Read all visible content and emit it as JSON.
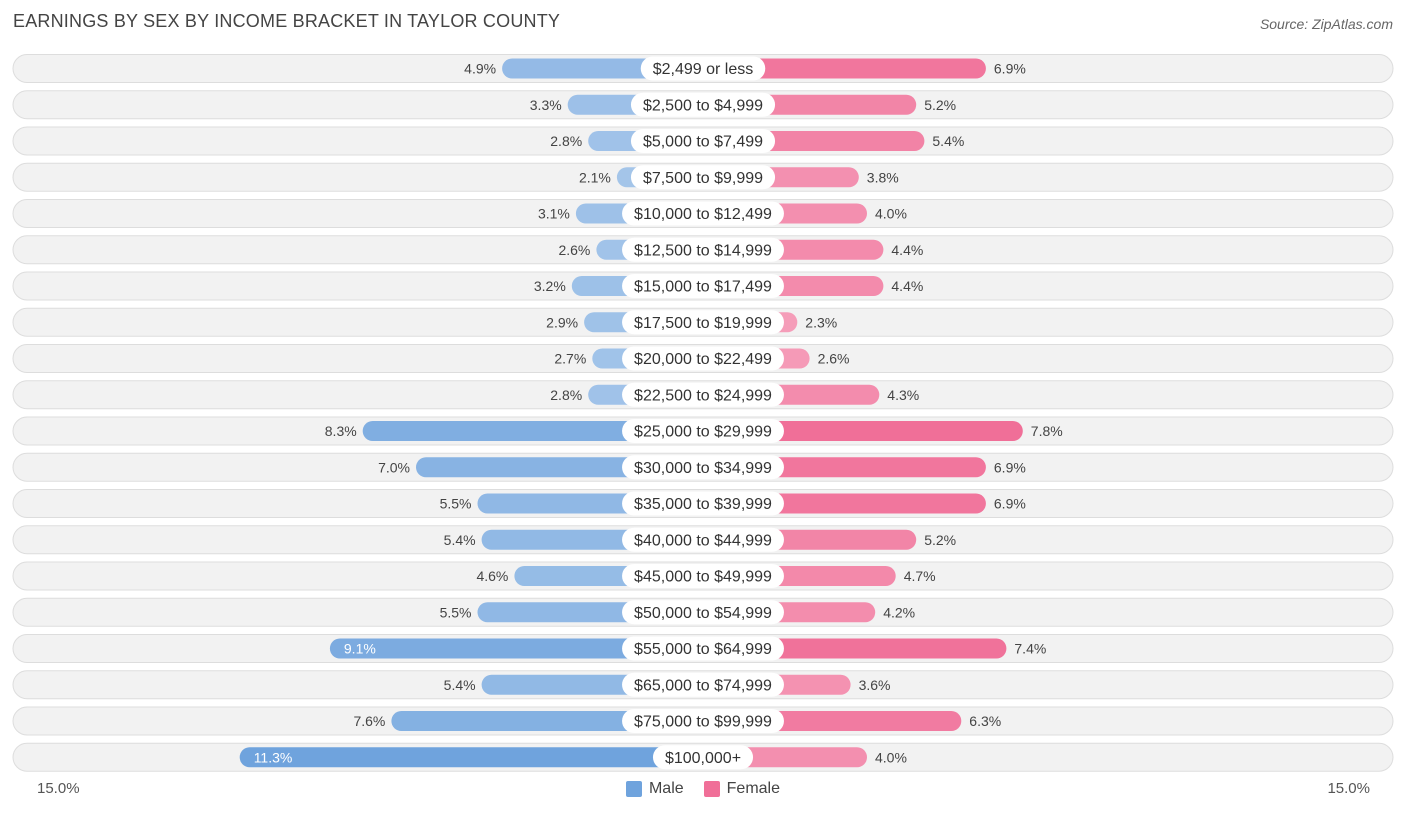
{
  "chart_data": {
    "type": "bar",
    "orientation": "horizontal-diverging",
    "title": "EARNINGS BY SEX BY INCOME BRACKET IN TAYLOR COUNTY",
    "source": "Source: ZipAtlas.com",
    "categories": [
      "$2,499 or less",
      "$2,500 to $4,999",
      "$5,000 to $7,499",
      "$7,500 to $9,999",
      "$10,000 to $12,499",
      "$12,500 to $14,999",
      "$15,000 to $17,499",
      "$17,500 to $19,999",
      "$20,000 to $22,499",
      "$22,500 to $24,999",
      "$25,000 to $29,999",
      "$30,000 to $34,999",
      "$35,000 to $39,999",
      "$40,000 to $44,999",
      "$45,000 to $49,999",
      "$50,000 to $54,999",
      "$55,000 to $64,999",
      "$65,000 to $74,999",
      "$75,000 to $99,999",
      "$100,000+"
    ],
    "series": [
      {
        "name": "Male",
        "color": "#6fa3dd",
        "values": [
          4.9,
          3.3,
          2.8,
          2.1,
          3.1,
          2.6,
          3.2,
          2.9,
          2.7,
          2.8,
          8.3,
          7.0,
          5.5,
          5.4,
          4.6,
          5.5,
          9.1,
          5.4,
          7.6,
          11.3
        ],
        "labels": [
          "4.9%",
          "3.3%",
          "2.8%",
          "2.1%",
          "3.1%",
          "2.6%",
          "3.2%",
          "2.9%",
          "2.7%",
          "2.8%",
          "8.3%",
          "7.0%",
          "5.5%",
          "5.4%",
          "4.6%",
          "5.5%",
          "9.1%",
          "5.4%",
          "7.6%",
          "11.3%"
        ]
      },
      {
        "name": "Female",
        "color": "#f06f98",
        "values": [
          6.9,
          5.2,
          5.4,
          3.8,
          4.0,
          4.4,
          4.4,
          2.3,
          2.6,
          4.3,
          7.8,
          6.9,
          6.9,
          5.2,
          4.7,
          4.2,
          7.4,
          3.6,
          6.3,
          4.0
        ],
        "labels": [
          "6.9%",
          "5.2%",
          "5.4%",
          "3.8%",
          "4.0%",
          "4.4%",
          "4.4%",
          "2.3%",
          "2.6%",
          "4.3%",
          "7.8%",
          "6.9%",
          "6.9%",
          "5.2%",
          "4.7%",
          "4.2%",
          "7.4%",
          "3.6%",
          "6.3%",
          "4.0%"
        ]
      }
    ],
    "xlim": [
      -15.0,
      15.0
    ],
    "axis_labels": {
      "left": "15.0%",
      "right": "15.0%"
    },
    "legend": {
      "position": "bottom-center",
      "items": [
        "Male",
        "Female"
      ]
    }
  }
}
